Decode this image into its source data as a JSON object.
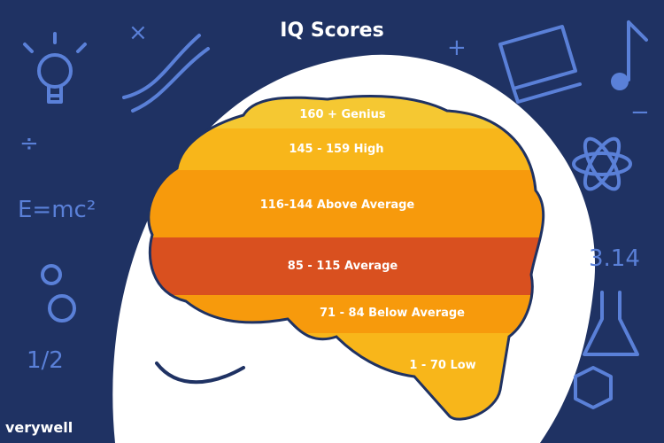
{
  "title": "IQ Scores",
  "brand": "verywell",
  "colors": {
    "background": "#1f3263",
    "icons": "#5a80d8",
    "head": "#ffffff",
    "outline": "#1f3263"
  },
  "bands": [
    {
      "label": "160 + Genius",
      "color": "#f5c832"
    },
    {
      "label": "145 - 159  High",
      "color": "#f8b61a"
    },
    {
      "label": "116-144  Above Average",
      "color": "#f79a0c"
    },
    {
      "label": "85 - 115  Average",
      "color": "#d9501f"
    },
    {
      "label": "71 - 84  Below Average",
      "color": "#f79a0c"
    },
    {
      "label": "1 - 70  Low",
      "color": "#f8b61a"
    }
  ],
  "doodles": {
    "formula": "E=mc²",
    "pi": "3.14",
    "half": "1/2",
    "divide": "÷",
    "times": "×",
    "plus": "+",
    "minus": "−"
  },
  "icons": [
    "lightbulb-icon",
    "dna-icon",
    "gear-icon",
    "book-icon",
    "music-note-icon",
    "atom-icon",
    "flask-icon",
    "cube-icon"
  ]
}
